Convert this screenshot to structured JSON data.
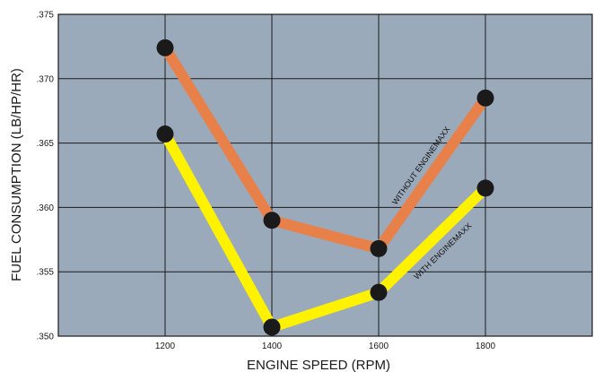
{
  "chart_data": {
    "type": "line",
    "title": "",
    "xlabel": "ENGINE SPEED (RPM)",
    "ylabel": "FUEL CONSUMPTION   (LB/HP/HR)",
    "x": [
      1200,
      1400,
      1600,
      1800
    ],
    "x_ticks": [
      "1200",
      "1400",
      "1600",
      "1800"
    ],
    "y_ticks": [
      ".350",
      ".355",
      ".360",
      ".365",
      ".370",
      ".375"
    ],
    "xlim": [
      1000,
      2000
    ],
    "ylim": [
      0.35,
      0.375
    ],
    "grid": true,
    "background_color": "#9aaabb",
    "grid_color": "#1a1a1a",
    "marker_color": "#1a1a1a",
    "series": [
      {
        "name": "WITHOUT ENGINEMAXX",
        "values": [
          0.3724,
          0.359,
          0.3568,
          0.3685
        ],
        "color": "#e8804a"
      },
      {
        "name": "WITH ENGINEMAXX",
        "values": [
          0.3657,
          0.3507,
          0.3534,
          0.3615
        ],
        "color": "#fff200"
      }
    ]
  }
}
